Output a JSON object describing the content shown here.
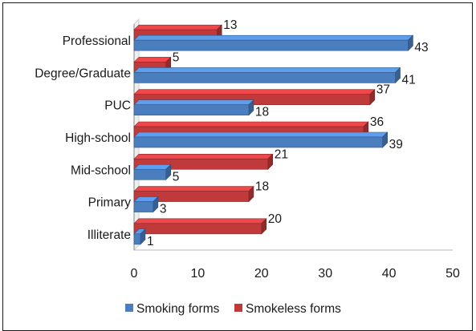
{
  "chart_data": {
    "type": "bar",
    "orientation": "horizontal",
    "categories": [
      "Professional",
      "Degree/Graduate",
      "PUC",
      "High-school",
      "Mid-school",
      "Primary",
      "Illiterate"
    ],
    "series": [
      {
        "name": "Smoking forms",
        "color": "#4a7ebf",
        "values": [
          43,
          41,
          18,
          39,
          5,
          3,
          1
        ]
      },
      {
        "name": "Smokeless forms",
        "color": "#c0393b",
        "values": [
          13,
          5,
          37,
          36,
          21,
          18,
          20
        ]
      }
    ],
    "xlim": [
      0,
      50
    ],
    "xticks": [
      0,
      10,
      20,
      30,
      40,
      50
    ],
    "grid": false,
    "legend_position": "bottom",
    "style": "3d"
  }
}
